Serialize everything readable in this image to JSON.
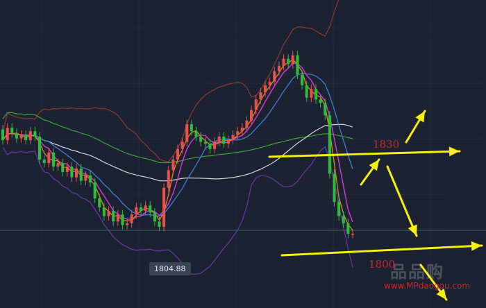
{
  "chart_data": {
    "type": "candlestick",
    "price_label": "1804.88",
    "annotations": [
      {
        "text": "1830",
        "color": "#d2262c"
      },
      {
        "text": "1800",
        "color": "#d2262c"
      }
    ],
    "candles": [
      {
        "o": 57,
        "c": 51
      },
      {
        "o": 51,
        "c": 58
      },
      {
        "o": 58,
        "c": 55
      },
      {
        "o": 55,
        "c": 52
      },
      {
        "o": 52,
        "c": 54
      },
      {
        "o": 54,
        "c": 51
      },
      {
        "o": 51,
        "c": 56
      },
      {
        "o": 56,
        "c": 53
      },
      {
        "o": 53,
        "c": 40
      },
      {
        "o": 40,
        "c": 38
      },
      {
        "o": 38,
        "c": 44
      },
      {
        "o": 44,
        "c": 36
      },
      {
        "o": 36,
        "c": 38
      },
      {
        "o": 38,
        "c": 33
      },
      {
        "o": 33,
        "c": 36
      },
      {
        "o": 36,
        "c": 30
      },
      {
        "o": 30,
        "c": 35
      },
      {
        "o": 35,
        "c": 28
      },
      {
        "o": 28,
        "c": 31
      },
      {
        "o": 31,
        "c": 27
      },
      {
        "o": 27,
        "c": 18
      },
      {
        "o": 18,
        "c": 13
      },
      {
        "o": 13,
        "c": 8
      },
      {
        "o": 8,
        "c": 11
      },
      {
        "o": 11,
        "c": 5
      },
      {
        "o": 5,
        "c": 9
      },
      {
        "o": 9,
        "c": 3
      },
      {
        "o": 3,
        "c": 4
      },
      {
        "o": 4,
        "c": 9
      },
      {
        "o": 9,
        "c": 13
      },
      {
        "o": 13,
        "c": 11
      },
      {
        "o": 11,
        "c": 14
      },
      {
        "o": 14,
        "c": 10
      },
      {
        "o": 10,
        "c": 5
      },
      {
        "o": 5,
        "c": 2
      },
      {
        "o": 2,
        "c": 24
      },
      {
        "o": 24,
        "c": 34
      },
      {
        "o": 34,
        "c": 40
      },
      {
        "o": 40,
        "c": 46
      },
      {
        "o": 46,
        "c": 50
      },
      {
        "o": 50,
        "c": 60
      },
      {
        "o": 60,
        "c": 56
      },
      {
        "o": 56,
        "c": 53
      },
      {
        "o": 53,
        "c": 50
      },
      {
        "o": 50,
        "c": 49
      },
      {
        "o": 49,
        "c": 46
      },
      {
        "o": 46,
        "c": 50
      },
      {
        "o": 50,
        "c": 53
      },
      {
        "o": 53,
        "c": 49
      },
      {
        "o": 49,
        "c": 51
      },
      {
        "o": 51,
        "c": 54
      },
      {
        "o": 54,
        "c": 56
      },
      {
        "o": 56,
        "c": 58
      },
      {
        "o": 58,
        "c": 62
      },
      {
        "o": 62,
        "c": 68
      },
      {
        "o": 68,
        "c": 74
      },
      {
        "o": 74,
        "c": 78
      },
      {
        "o": 78,
        "c": 82
      },
      {
        "o": 82,
        "c": 84
      },
      {
        "o": 84,
        "c": 90
      },
      {
        "o": 90,
        "c": 93
      },
      {
        "o": 93,
        "c": 97
      },
      {
        "o": 97,
        "c": 94
      },
      {
        "o": 94,
        "c": 99
      },
      {
        "o": 99,
        "c": 88
      },
      {
        "o": 88,
        "c": 82
      },
      {
        "o": 82,
        "c": 75
      },
      {
        "o": 75,
        "c": 80
      },
      {
        "o": 80,
        "c": 74
      },
      {
        "o": 74,
        "c": 72
      },
      {
        "o": 72,
        "c": 65
      },
      {
        "o": 65,
        "c": 32
      },
      {
        "o": 32,
        "c": 16
      },
      {
        "o": 16,
        "c": 8
      },
      {
        "o": 8,
        "c": 4
      },
      {
        "o": 4,
        "c": -2
      },
      {
        "o": -2,
        "c": -2
      }
    ]
  }
}
